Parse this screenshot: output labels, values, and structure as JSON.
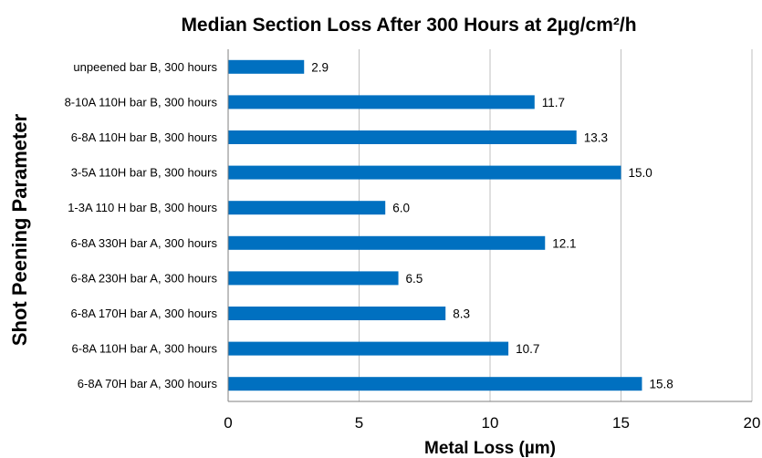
{
  "chart_data": {
    "type": "bar",
    "orientation": "horizontal",
    "title": "Median Section Loss After 300 Hours at 2µg/cm²/h",
    "xlabel": "Metal Loss (µm)",
    "ylabel": "Shot Peening Parameter",
    "xlim": [
      0,
      20
    ],
    "xticks": [
      "0",
      "5",
      "10",
      "15",
      "20"
    ],
    "grid": "vertical",
    "categories": [
      "unpeened bar B, 300 hours",
      "8-10A 110H bar B, 300 hours",
      "6-8A 110H bar B, 300 hours",
      "3-5A 110H bar B, 300 hours",
      "1-3A 110 H bar B, 300 hours",
      "6-8A 330H bar A, 300 hours",
      "6-8A 230H bar A, 300 hours",
      "6-8A 170H bar A, 300 hours",
      "6-8A 110H bar A, 300 hours",
      "6-8A 70H bar A, 300 hours"
    ],
    "values": [
      2.9,
      11.7,
      13.3,
      15.0,
      6.0,
      12.1,
      6.5,
      8.3,
      10.7,
      15.8
    ],
    "data_labels": [
      "2.9",
      "11.7",
      "13.3",
      "15.0",
      "6.0",
      "12.1",
      "6.5",
      "8.3",
      "10.7",
      "15.8"
    ],
    "bar_color": "#0070C0",
    "grid_color": "#bfbfbf"
  }
}
